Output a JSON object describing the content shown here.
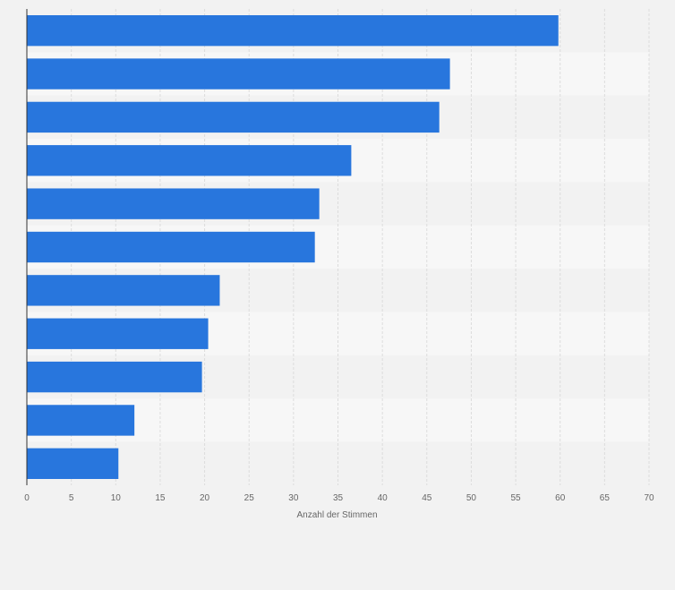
{
  "chart_data": {
    "type": "bar",
    "orientation": "horizontal",
    "title": "",
    "xlabel": "Anzahl der Stimmen",
    "ylabel": "",
    "categories": [
      "",
      "",
      "",
      "",
      "",
      "",
      "",
      "",
      "",
      "",
      ""
    ],
    "values": [
      59.8,
      47.6,
      46.4,
      36.5,
      32.9,
      32.4,
      21.7,
      20.4,
      19.7,
      12.1,
      10.3
    ],
    "xlim": [
      0,
      70
    ],
    "ticks": [
      0,
      5,
      10,
      15,
      20,
      25,
      30,
      35,
      40,
      45,
      50,
      55,
      60,
      65,
      70
    ],
    "grid": true,
    "legend": "none",
    "colors": {
      "bar": "#2876dd",
      "band_dark": "#f2f2f2",
      "band_light": "#f7f7f7",
      "grid": "#dcdcdc",
      "axis": "#333333",
      "text": "#666666"
    }
  }
}
